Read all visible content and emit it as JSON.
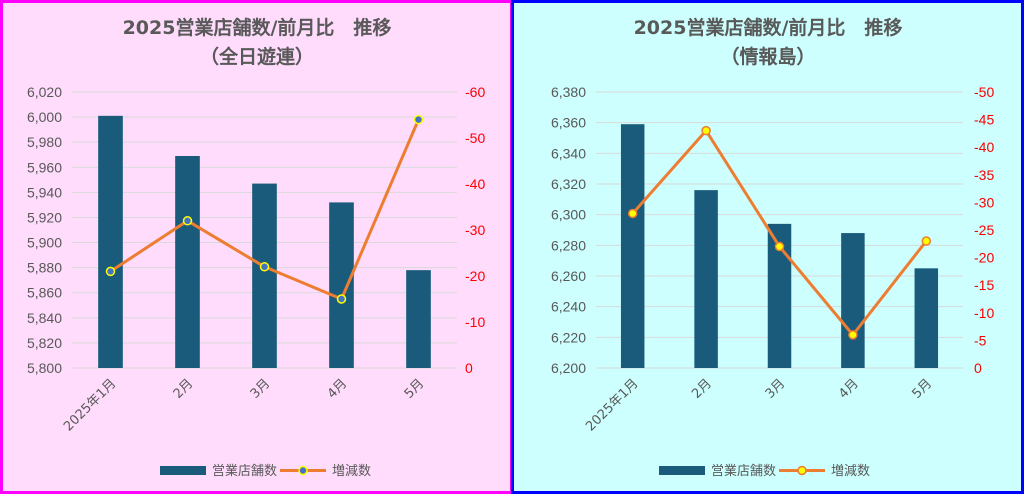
{
  "chart_data": [
    {
      "type": "bar",
      "title": "2025営業店舗数/前月比　推移",
      "subtitle": "（全日遊連）",
      "categories": [
        "2025年1月",
        "2月",
        "3月",
        "4月",
        "5月"
      ],
      "series": [
        {
          "name": "営業店舗数",
          "type": "bar",
          "axis": "left",
          "values": [
            6001,
            5969,
            5947,
            5932,
            5878
          ]
        },
        {
          "name": "増減数",
          "type": "line",
          "axis": "right",
          "values": [
            -21,
            -32,
            -22,
            -15,
            -54
          ]
        }
      ],
      "y_left": {
        "min": 5800,
        "max": 6020,
        "step": 20
      },
      "y_right": {
        "min": 0,
        "max": -60,
        "step": -10
      },
      "grid": true,
      "legend": "bottom",
      "colors": {
        "bg": "#ffdcfc",
        "border": "#ff00ff",
        "bar": "#1a5b7c",
        "line": "#ed7d31",
        "marker_fill": "#4472c4",
        "marker_edge": "#ffff00"
      }
    },
    {
      "type": "bar",
      "title": "2025営業店舗数/前月比　推移",
      "subtitle": "（情報島）",
      "categories": [
        "2025年1月",
        "2月",
        "3月",
        "4月",
        "5月"
      ],
      "series": [
        {
          "name": "営業店舗数",
          "type": "bar",
          "axis": "left",
          "values": [
            6359,
            6316,
            6294,
            6288,
            6265
          ]
        },
        {
          "name": "増減数",
          "type": "line",
          "axis": "right",
          "values": [
            -28,
            -43,
            -22,
            -6,
            -23
          ]
        }
      ],
      "y_left": {
        "min": 6200,
        "max": 6380,
        "step": 20
      },
      "y_right": {
        "min": 0,
        "max": -50,
        "step": -5
      },
      "grid": true,
      "legend": "bottom",
      "colors": {
        "bg": "#ccfffe",
        "border": "#0000ff",
        "bar": "#1a5b7c",
        "line": "#ed7d31",
        "marker_fill": "#ffff00",
        "marker_edge": "#ed7d31"
      }
    }
  ]
}
